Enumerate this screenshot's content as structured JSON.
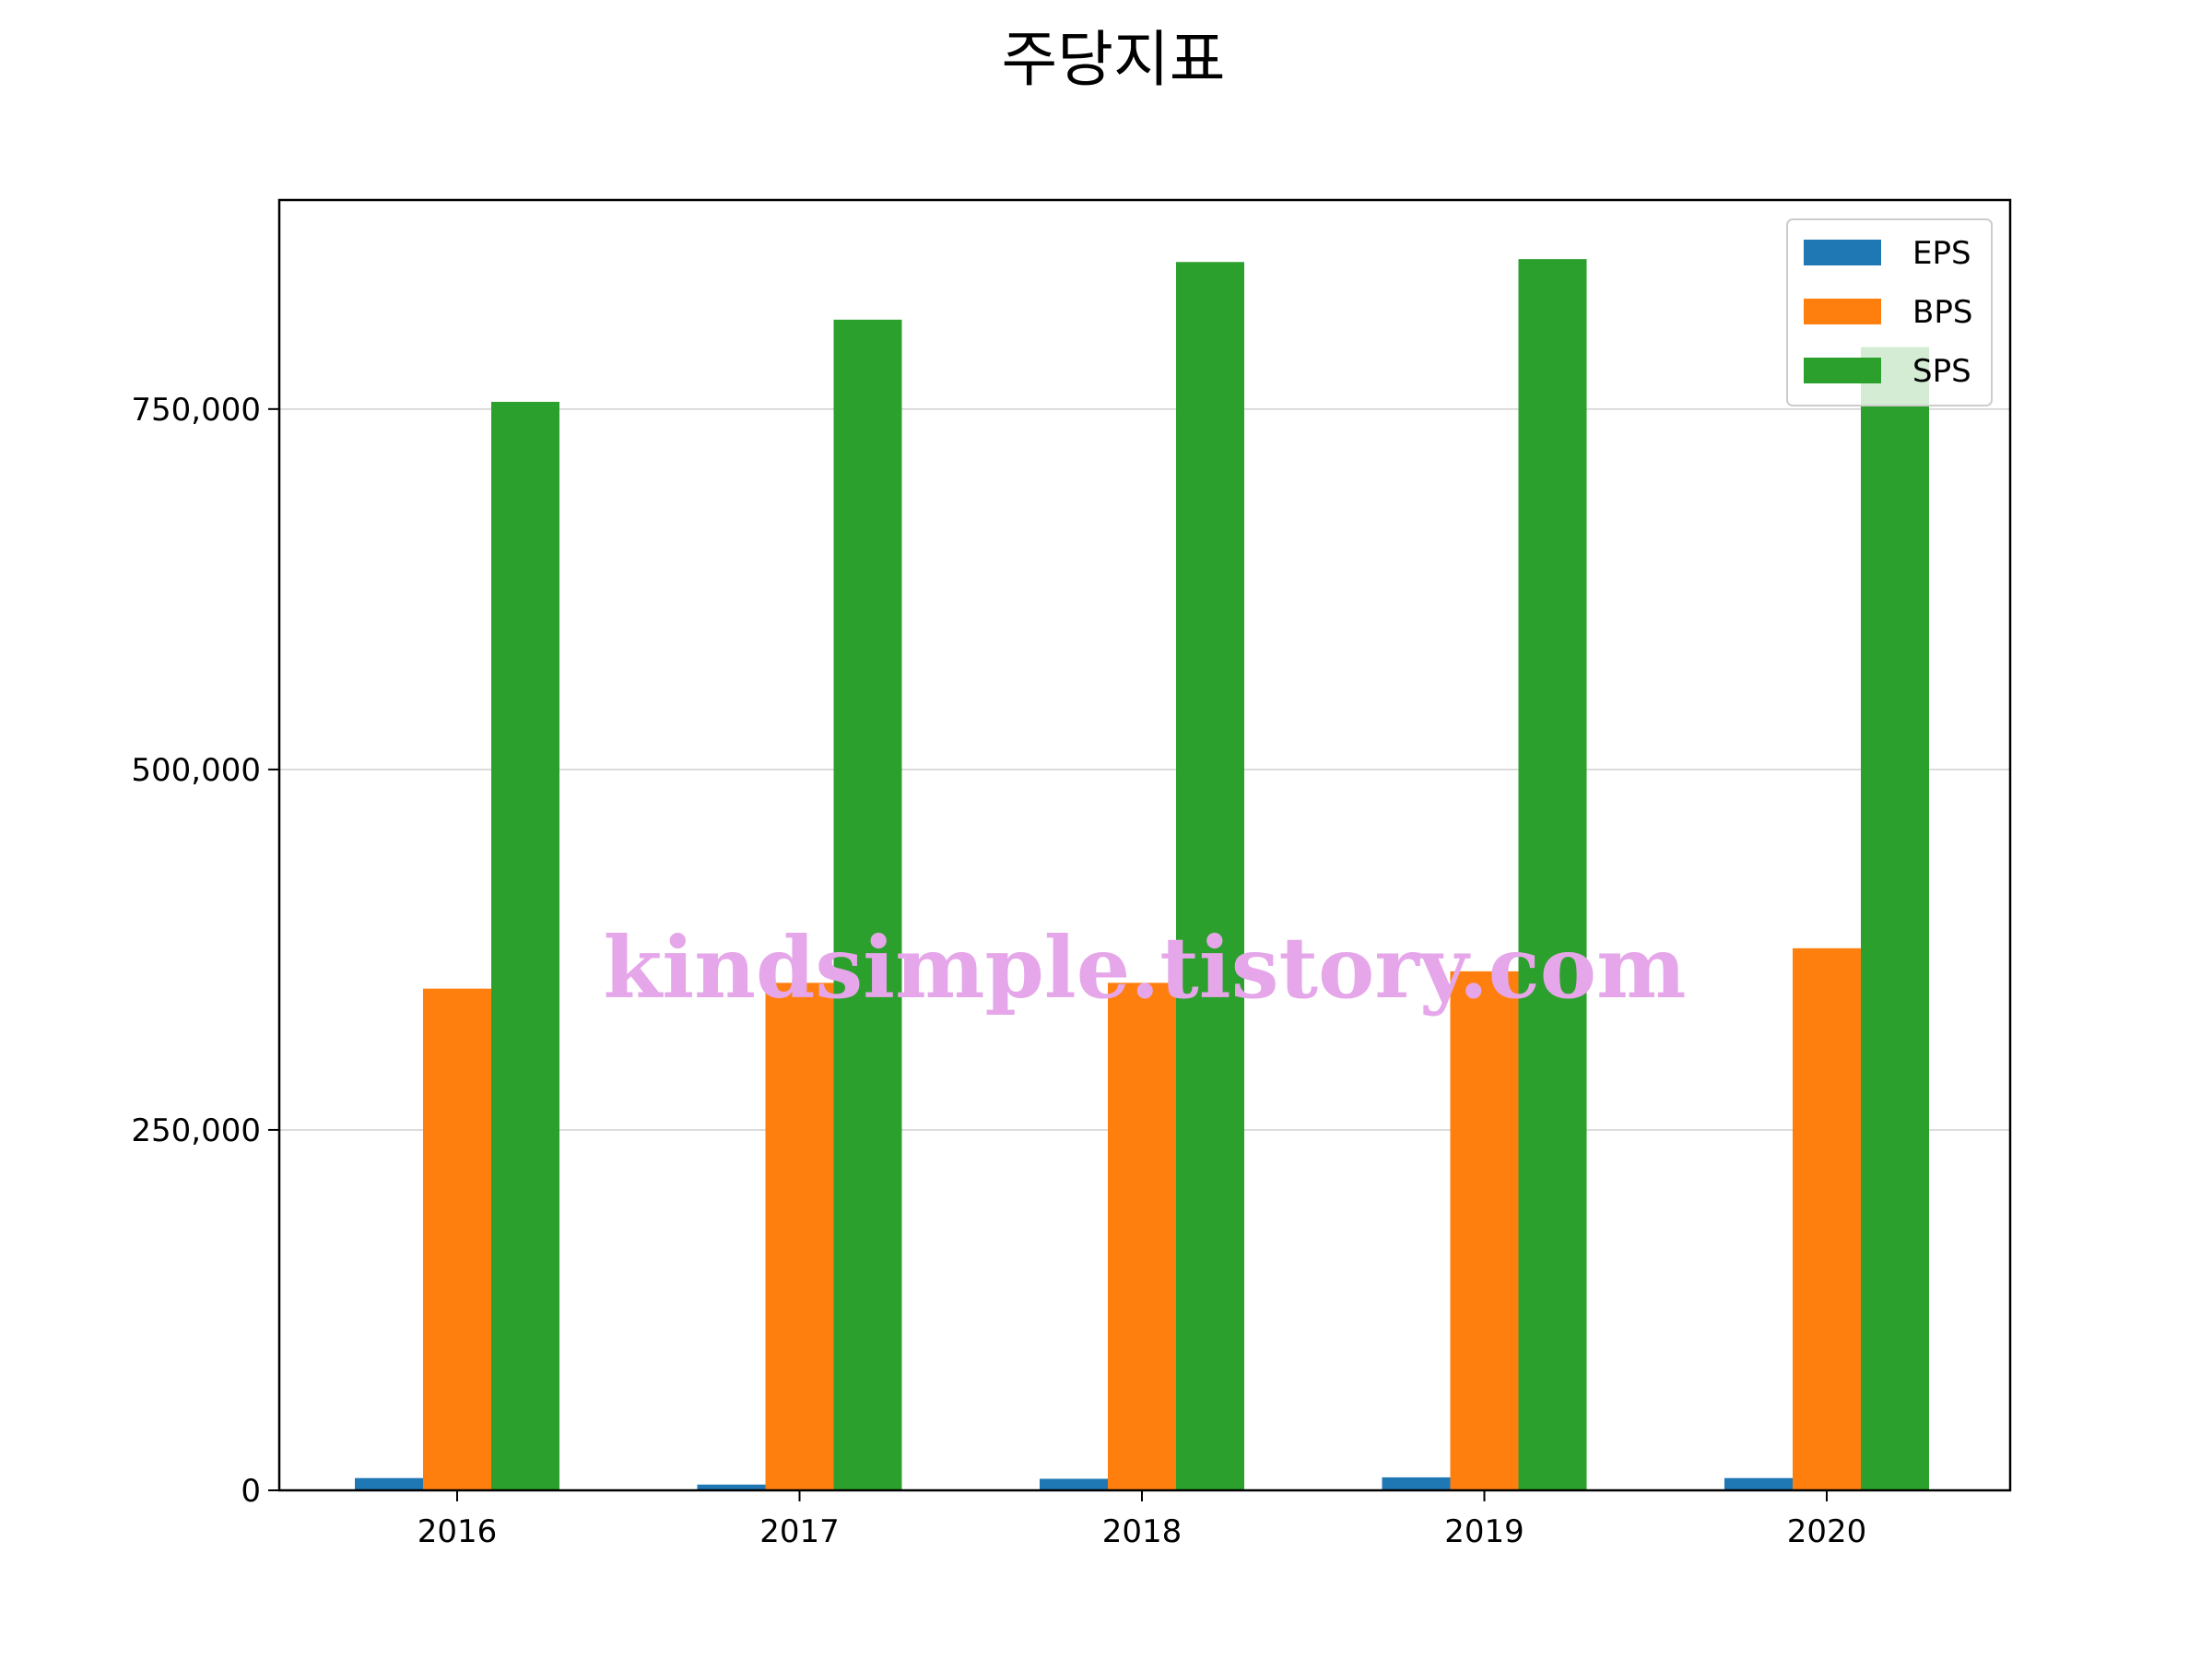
{
  "chart_data": {
    "type": "bar",
    "title": "주당지표",
    "xlabel": "",
    "ylabel": "",
    "categories": [
      "2016",
      "2017",
      "2018",
      "2019",
      "2020"
    ],
    "series": [
      {
        "name": "EPS",
        "color": "#1f77b4",
        "values": [
          8500,
          4000,
          8000,
          9000,
          8500
        ]
      },
      {
        "name": "BPS",
        "color": "#ff7f0e",
        "values": [
          348000,
          352000,
          352000,
          360000,
          376000
        ]
      },
      {
        "name": "SPS",
        "color": "#2ca02c",
        "values": [
          755000,
          812000,
          852000,
          854000,
          793000
        ]
      }
    ],
    "ylim": [
      0,
      895000
    ],
    "yticks": [
      0,
      250000,
      500000,
      750000
    ],
    "ytick_labels": [
      "0",
      "250,000",
      "500,000",
      "750,000"
    ],
    "grid": "y",
    "legend_position": "top-right"
  },
  "watermark": "kindsimple.tistory.com"
}
